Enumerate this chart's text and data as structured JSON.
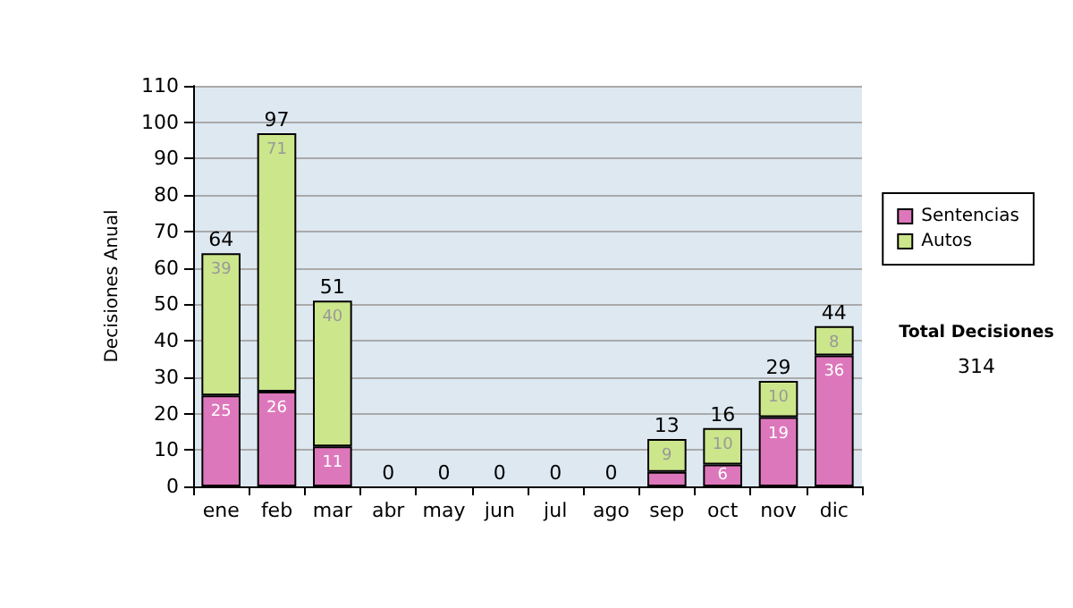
{
  "chart_data": {
    "type": "bar",
    "stacked": true,
    "ylabel": "Decisiones Anual",
    "categories": [
      "ene",
      "feb",
      "mar",
      "abr",
      "may",
      "jun",
      "jul",
      "ago",
      "sep",
      "oct",
      "nov",
      "dic"
    ],
    "series": [
      {
        "name": "Sentencias",
        "color": "#dd77bb",
        "values": [
          25,
          26,
          11,
          0,
          0,
          0,
          0,
          0,
          4,
          6,
          19,
          36
        ],
        "value_labels": [
          "25",
          "26",
          "11",
          null,
          null,
          null,
          null,
          null,
          null,
          "6",
          "19",
          "36"
        ]
      },
      {
        "name": "Autos",
        "color": "#cce68c",
        "values": [
          39,
          71,
          40,
          0,
          0,
          0,
          0,
          0,
          9,
          10,
          10,
          8
        ],
        "value_labels": [
          "39",
          "71",
          "40",
          null,
          null,
          null,
          null,
          null,
          "9",
          "10",
          "10",
          "8"
        ]
      }
    ],
    "totals": [
      "64",
      "97",
      "51",
      "0",
      "0",
      "0",
      "0",
      "0",
      "13",
      "16",
      "29",
      "44"
    ],
    "ylim": [
      0,
      110
    ],
    "yticks": [
      0,
      10,
      20,
      30,
      40,
      50,
      60,
      70,
      80,
      90,
      100,
      110
    ],
    "grid": "y",
    "legend": "right",
    "annotations": [
      "Total Decisiones",
      "314"
    ]
  }
}
